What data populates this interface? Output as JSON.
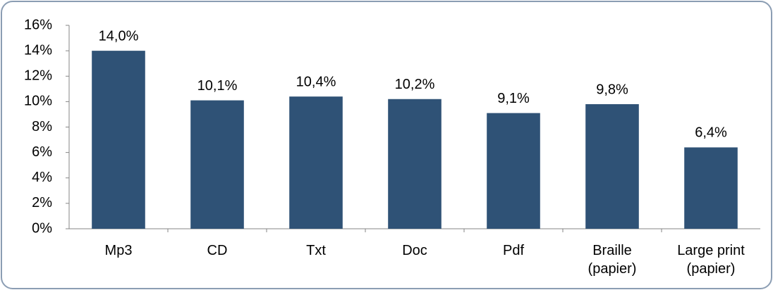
{
  "chart_data": {
    "type": "bar",
    "categories": [
      "Mp3",
      "CD",
      "Txt",
      "Doc",
      "Pdf",
      "Braille (papier)",
      "Large print (papier)"
    ],
    "values": [
      14.0,
      10.1,
      10.4,
      10.2,
      9.1,
      9.8,
      6.4
    ],
    "value_labels": [
      "14,0%",
      "10,1%",
      "10,4%",
      "10,2%",
      "9,1%",
      "9,8%",
      "6,4%"
    ],
    "color": "#2f5276",
    "ylim": [
      0,
      16
    ],
    "yticks": [
      {
        "value": 0,
        "label": "0%"
      },
      {
        "value": 2,
        "label": "2%"
      },
      {
        "value": 4,
        "label": "4%"
      },
      {
        "value": 6,
        "label": "6%"
      },
      {
        "value": 8,
        "label": "8%"
      },
      {
        "value": 10,
        "label": "10%"
      },
      {
        "value": 12,
        "label": "12%"
      },
      {
        "value": 14,
        "label": "14%"
      },
      {
        "value": 16,
        "label": "16%"
      }
    ],
    "grid": false
  }
}
